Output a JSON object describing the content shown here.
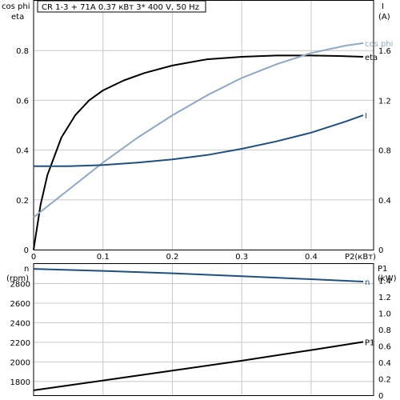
{
  "title": "CR 1-3 + 71A    0.37 кВт    3* 400 V, 50 Hz",
  "colors": {
    "eta": "#000000",
    "cos_phi": "#8ea7c4",
    "current": "#1e4f80",
    "speed": "#1e4f80",
    "power": "#000000"
  },
  "chart_data": [
    {
      "type": "line",
      "title": "CR 1-3 + 71A    0.37 кВт    3* 400 V, 50 Hz",
      "xlabel": "P2(кВт)",
      "ylabel_left": "cos phi / eta",
      "ylabel_left_top": "cos phi",
      "ylabel_left_bottom": "eta",
      "ylabel_right": "I",
      "ylabel_right_unit": "(A)",
      "xlim": [
        0,
        0.49
      ],
      "ylim_left": [
        0,
        1.0
      ],
      "ylim_right": [
        0,
        2.0
      ],
      "x_ticks": [
        "0",
        "0.1",
        "0.2",
        "0.3",
        "0.4"
      ],
      "y_ticks_left": [
        "0",
        "0.2",
        "0.4",
        "0.6",
        "0.8"
      ],
      "y_ticks_right": [
        "0",
        "0.4",
        "0.8",
        "1.2",
        "1.6"
      ],
      "grid": true,
      "series": [
        {
          "name": "eta",
          "axis": "left",
          "color": "#000000",
          "x": [
            0,
            0.01,
            0.02,
            0.04,
            0.06,
            0.08,
            0.1,
            0.13,
            0.16,
            0.2,
            0.25,
            0.3,
            0.35,
            0.4,
            0.44,
            0.475
          ],
          "y": [
            0,
            0.18,
            0.3,
            0.45,
            0.54,
            0.6,
            0.64,
            0.68,
            0.71,
            0.74,
            0.765,
            0.775,
            0.78,
            0.78,
            0.778,
            0.775
          ]
        },
        {
          "name": "cos phi",
          "axis": "left",
          "color": "#8ea7c4",
          "x": [
            0,
            0.05,
            0.1,
            0.15,
            0.2,
            0.25,
            0.3,
            0.35,
            0.4,
            0.45,
            0.475
          ],
          "y": [
            0.13,
            0.24,
            0.35,
            0.45,
            0.54,
            0.62,
            0.69,
            0.745,
            0.79,
            0.82,
            0.83
          ]
        },
        {
          "name": "I",
          "axis": "right",
          "color": "#1e4f80",
          "x": [
            0,
            0.05,
            0.1,
            0.15,
            0.2,
            0.25,
            0.3,
            0.35,
            0.4,
            0.45,
            0.475
          ],
          "y": [
            0.67,
            0.67,
            0.68,
            0.7,
            0.725,
            0.76,
            0.81,
            0.87,
            0.94,
            1.03,
            1.08
          ]
        }
      ]
    },
    {
      "type": "line",
      "xlabel": "",
      "ylabel_left": "n",
      "ylabel_left_unit": "(rpm)",
      "ylabel_right": "P1",
      "ylabel_right_unit": "(kW)",
      "xlim": [
        0,
        0.49
      ],
      "ylim_left": [
        1660,
        3000
      ],
      "ylim_right": [
        0,
        1.6
      ],
      "y_ticks_left": [
        "1800",
        "2000",
        "2200",
        "2400",
        "2600",
        "2800"
      ],
      "y_ticks_right": [
        "0",
        "0.2",
        "0.4",
        "0.6",
        "0.8",
        "1.0",
        "1.2",
        "1.4"
      ],
      "grid": true,
      "series": [
        {
          "name": "n",
          "axis": "left",
          "color": "#1e4f80",
          "x": [
            0,
            0.1,
            0.2,
            0.3,
            0.4,
            0.475
          ],
          "y": [
            2950,
            2930,
            2905,
            2875,
            2845,
            2820
          ]
        },
        {
          "name": "P1",
          "axis": "right",
          "color": "#000000",
          "x": [
            0,
            0.1,
            0.2,
            0.3,
            0.4,
            0.475
          ],
          "y": [
            0.06,
            0.18,
            0.3,
            0.42,
            0.55,
            0.65
          ]
        }
      ]
    }
  ]
}
